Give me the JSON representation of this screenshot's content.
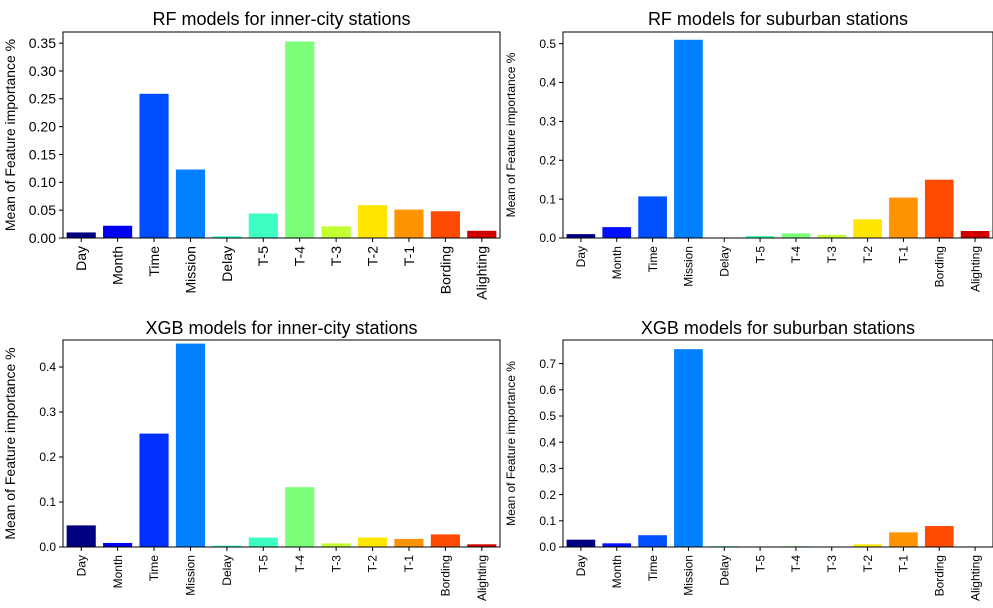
{
  "chart_data": [
    {
      "type": "bar",
      "title": "RF models for inner-city stations",
      "ylabel": "Mean of Feature importance %",
      "categories": [
        "Day",
        "Month",
        "Time",
        "Mission",
        "Delay",
        "T-5",
        "T-4",
        "T-3",
        "T-2",
        "T-1",
        "Bording",
        "Alighting"
      ],
      "values": [
        0.01,
        0.022,
        0.259,
        0.123,
        0.003,
        0.044,
        0.353,
        0.021,
        0.059,
        0.051,
        0.048,
        0.013
      ],
      "ylim": [
        0,
        0.37
      ],
      "yticks": [
        "0.00",
        "0.05",
        "0.10",
        "0.15",
        "0.20",
        "0.25",
        "0.30",
        "0.35"
      ],
      "ytick_values": [
        0,
        0.05,
        0.1,
        0.15,
        0.2,
        0.25,
        0.3,
        0.35
      ],
      "grid": false,
      "legend": "none",
      "colors": [
        "#000080",
        "#0000f1",
        "#004cff",
        "#0080ff",
        "#29ffce",
        "#3dffc4",
        "#7dff7a",
        "#c4ff33",
        "#ffe600",
        "#ff9400",
        "#ff4a00",
        "#d00000"
      ]
    },
    {
      "type": "bar",
      "title": "RF models for suburban stations",
      "ylabel": "Mean of Feature importance %",
      "categories": [
        "Day",
        "Month",
        "Time",
        "Mission",
        "Delay",
        "T-5",
        "T-4",
        "T-3",
        "T-2",
        "T-1",
        "Bording",
        "Alighting"
      ],
      "values": [
        0.01,
        0.028,
        0.107,
        0.51,
        0.001,
        0.005,
        0.012,
        0.008,
        0.048,
        0.104,
        0.15,
        0.018
      ],
      "ylim": [
        0,
        0.53
      ],
      "yticks": [
        "0.0",
        "0.1",
        "0.2",
        "0.3",
        "0.4",
        "0.5"
      ],
      "ytick_values": [
        0,
        0.1,
        0.2,
        0.3,
        0.4,
        0.5
      ],
      "grid": false,
      "legend": "none",
      "colors": [
        "#000080",
        "#0010ff",
        "#0050ff",
        "#0080ff",
        "#29ffce",
        "#45ffb0",
        "#7dff7a",
        "#c4ff33",
        "#ffe600",
        "#ff9400",
        "#ff4a00",
        "#d00000"
      ]
    },
    {
      "type": "bar",
      "title": "XGB models for inner-city stations",
      "ylabel": "Mean of Feature importance %",
      "categories": [
        "Day",
        "Month",
        "Time",
        "Mission",
        "Delay",
        "T-5",
        "T-4",
        "T-3",
        "T-2",
        "T-1",
        "Bording",
        "Alighting"
      ],
      "values": [
        0.048,
        0.009,
        0.252,
        0.452,
        0.003,
        0.021,
        0.133,
        0.008,
        0.021,
        0.018,
        0.028,
        0.006
      ],
      "ylim": [
        0,
        0.46
      ],
      "yticks": [
        "0.0",
        "0.1",
        "0.2",
        "0.3",
        "0.4"
      ],
      "ytick_values": [
        0,
        0.1,
        0.2,
        0.3,
        0.4
      ],
      "grid": false,
      "legend": "none",
      "colors": [
        "#000080",
        "#0000f1",
        "#0030ff",
        "#0080ff",
        "#29ffce",
        "#3dffc4",
        "#7dff7a",
        "#c4ff33",
        "#ffe600",
        "#ff9400",
        "#ff4a00",
        "#d00000"
      ]
    },
    {
      "type": "bar",
      "title": "XGB models for suburban stations",
      "ylabel": "Mean of Feature importance %",
      "categories": [
        "Day",
        "Month",
        "Time",
        "Mission",
        "Delay",
        "T-5",
        "T-4",
        "T-3",
        "T-2",
        "T-1",
        "Bording",
        "Alighting"
      ],
      "values": [
        0.028,
        0.014,
        0.045,
        0.755,
        0.003,
        0.002,
        0.003,
        0.002,
        0.01,
        0.056,
        0.08,
        0.002
      ],
      "ylim": [
        0,
        0.79
      ],
      "yticks": [
        "0.0",
        "0.1",
        "0.2",
        "0.3",
        "0.4",
        "0.5",
        "0.6",
        "0.7"
      ],
      "ytick_values": [
        0,
        0.1,
        0.2,
        0.3,
        0.4,
        0.5,
        0.6,
        0.7
      ],
      "grid": false,
      "legend": "none",
      "colors": [
        "#000080",
        "#0010ff",
        "#0050ff",
        "#0080ff",
        "#29ffce",
        "#45ffb0",
        "#7dff7a",
        "#c4ff33",
        "#ffe600",
        "#ff9400",
        "#ff4a00",
        "#d00000"
      ]
    }
  ]
}
